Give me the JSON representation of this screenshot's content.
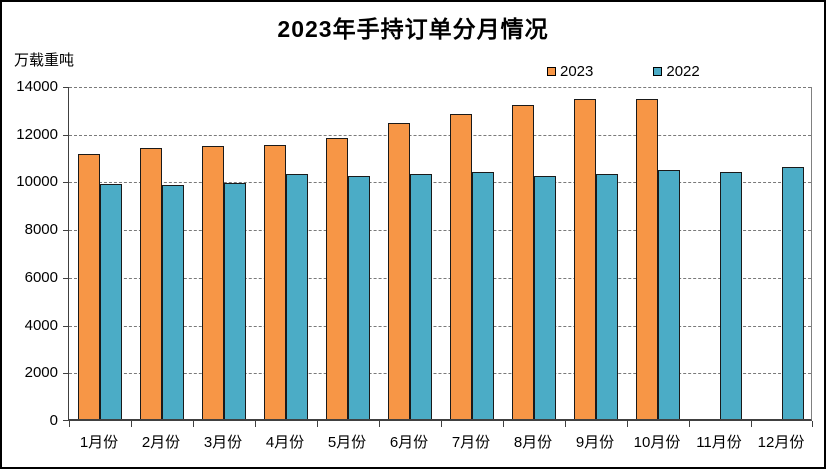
{
  "chart_data": {
    "type": "bar",
    "title": "2023年手持订单分月情况",
    "ylabel": "万载重吨",
    "xlabel": "",
    "categories": [
      "1月份",
      "2月份",
      "3月份",
      "4月份",
      "5月份",
      "6月份",
      "7月份",
      "8月份",
      "9月份",
      "10月份",
      "11月份",
      "12月份"
    ],
    "series": [
      {
        "name": "2023",
        "color": "#F79646",
        "values": [
          11100,
          11350,
          11450,
          11500,
          11800,
          12400,
          12800,
          13150,
          13400,
          13400,
          null,
          null
        ]
      },
      {
        "name": "2022",
        "color": "#4BACC6",
        "values": [
          9850,
          9800,
          9900,
          10250,
          10200,
          10250,
          10350,
          10200,
          10250,
          10450,
          10350,
          10550
        ]
      }
    ],
    "ylim": [
      0,
      14000
    ],
    "ytick_step": 2000,
    "grid": true,
    "grid_style": "dashed",
    "legend_position": "top-right",
    "bar_border_color": "#1a1a1a",
    "background_color": "#ffffff",
    "outer_border_color": "#000000"
  }
}
